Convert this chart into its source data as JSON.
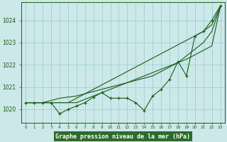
{
  "background_color": "#cce8e8",
  "plot_bg_color": "#cce8e8",
  "grid_color": "#99cccc",
  "line_color": "#1a5c1a",
  "title": "Graphe pression niveau de la mer (hPa)",
  "title_bg": "#2d6b2d",
  "title_fg": "#ffffff",
  "xlim": [
    -0.5,
    23.5
  ],
  "ylim": [
    1019.4,
    1024.8
  ],
  "yticks": [
    1020,
    1021,
    1022,
    1023,
    1024
  ],
  "xticks": [
    0,
    1,
    2,
    3,
    4,
    5,
    6,
    7,
    8,
    9,
    10,
    11,
    12,
    13,
    14,
    15,
    16,
    17,
    18,
    19,
    20,
    21,
    22,
    23
  ],
  "series": {
    "line1": [
      1020.3,
      1020.3,
      1020.3,
      1020.3,
      1020.3,
      1020.3,
      1020.3,
      1020.45,
      1020.6,
      1020.75,
      1020.9,
      1021.05,
      1021.2,
      1021.35,
      1021.5,
      1021.65,
      1021.8,
      1021.95,
      1022.1,
      1022.25,
      1022.45,
      1022.65,
      1022.85,
      1024.6
    ],
    "line2": [
      1020.3,
      1020.3,
      1020.3,
      1020.3,
      1020.3,
      1020.3,
      1020.5,
      1020.7,
      1020.9,
      1021.1,
      1021.3,
      1021.5,
      1021.7,
      1021.9,
      1022.1,
      1022.3,
      1022.5,
      1022.7,
      1022.9,
      1023.1,
      1023.3,
      1023.5,
      1023.8,
      1024.6
    ],
    "line3": [
      1020.3,
      1020.3,
      1020.3,
      1020.4,
      1020.5,
      1020.55,
      1020.6,
      1020.7,
      1020.8,
      1020.9,
      1021.0,
      1021.1,
      1021.2,
      1021.3,
      1021.4,
      1021.5,
      1021.7,
      1021.9,
      1022.1,
      1022.4,
      1022.7,
      1023.0,
      1023.5,
      1024.6
    ],
    "main": [
      1020.3,
      1020.3,
      1020.3,
      1020.3,
      1019.8,
      1020.0,
      1020.15,
      1020.3,
      1020.55,
      1020.75,
      1020.5,
      1020.5,
      1020.5,
      1020.3,
      1019.95,
      1020.6,
      1020.9,
      1021.35,
      1022.15,
      1021.5,
      1023.3,
      1023.5,
      1024.0,
      1024.65
    ]
  }
}
